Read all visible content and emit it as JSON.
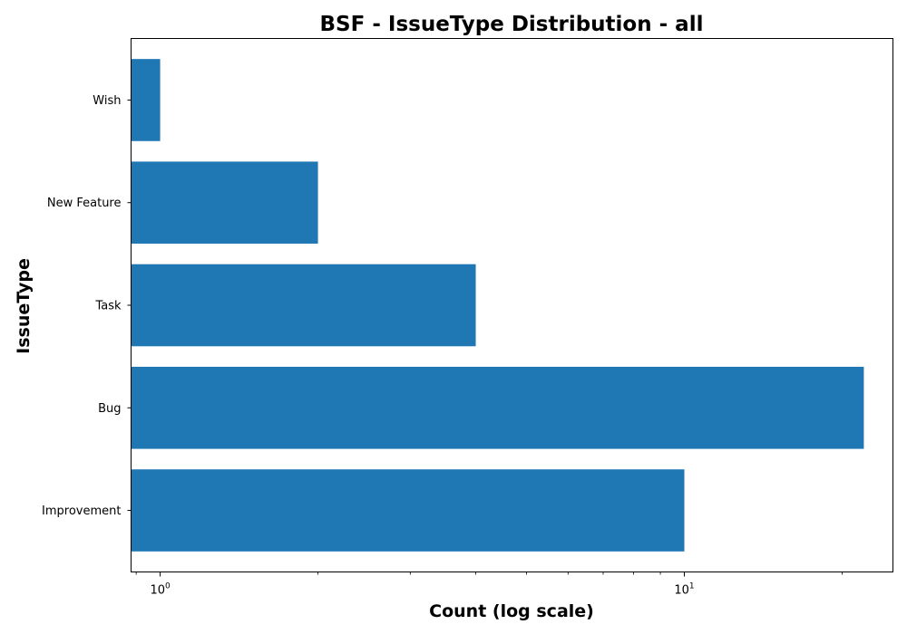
{
  "chart_data": {
    "type": "bar",
    "orientation": "horizontal",
    "title": "BSF - IssueType Distribution - all",
    "xlabel": "Count (log scale)",
    "ylabel": "IssueType",
    "x_scale": "log",
    "xlim": [
      0.88,
      25
    ],
    "x_major_ticks": [
      {
        "value": 1,
        "base": "10",
        "exponent": "0"
      },
      {
        "value": 10,
        "base": "10",
        "exponent": "1"
      }
    ],
    "categories": [
      "Improvement",
      "Bug",
      "Task",
      "New Feature",
      "Wish"
    ],
    "values": [
      10,
      22,
      4,
      2,
      1
    ],
    "bar_color": "#1f77b4",
    "grid": false,
    "legend": "none"
  }
}
